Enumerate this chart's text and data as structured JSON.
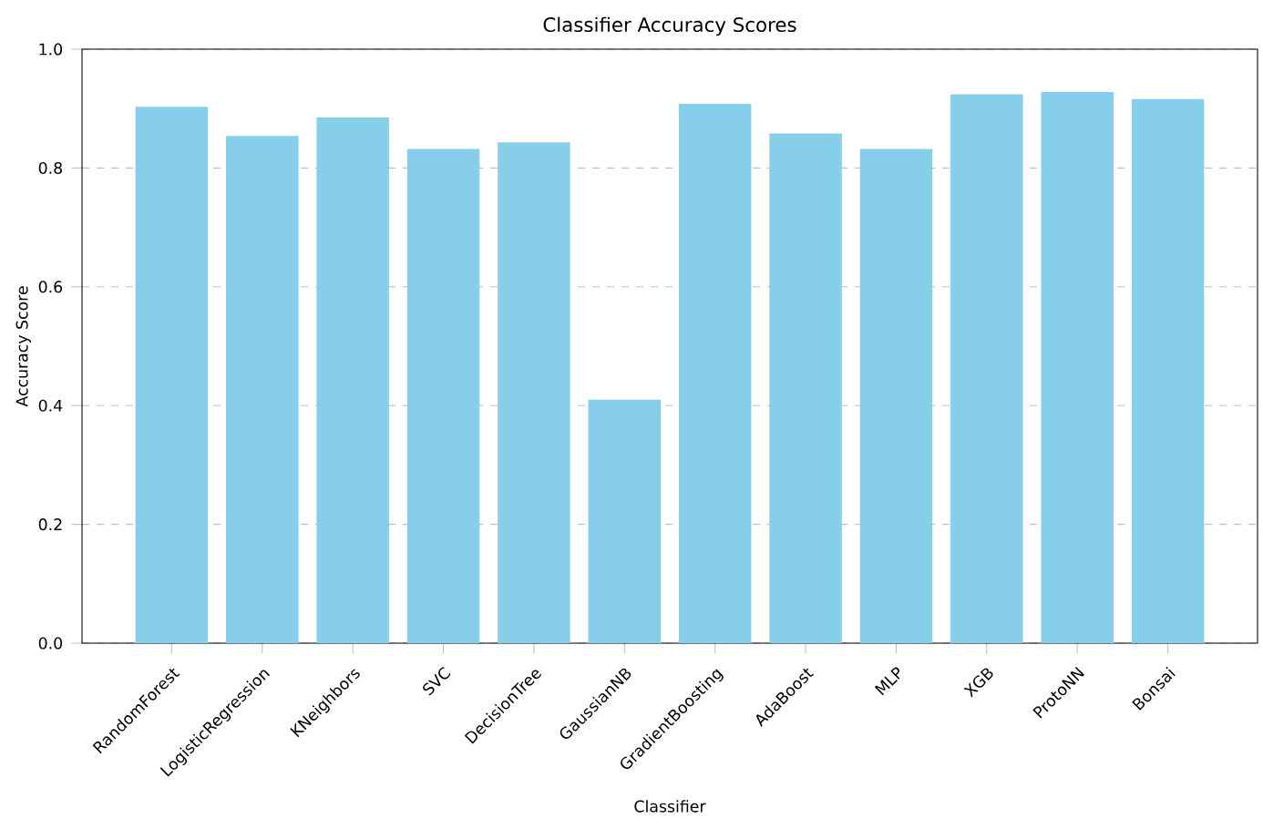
{
  "chart_data": {
    "type": "bar",
    "title": "Classifier Accuracy Scores",
    "xlabel": "Classifier",
    "ylabel": "Accuracy Score",
    "categories": [
      "RandomForest",
      "LogisticRegression",
      "KNeighbors",
      "SVC",
      "DecisionTree",
      "GaussianNB",
      "GradientBoosting",
      "AdaBoost",
      "MLP",
      "XGB",
      "ProtoNN",
      "Bonsai"
    ],
    "values": [
      0.903,
      0.854,
      0.885,
      0.832,
      0.843,
      0.41,
      0.908,
      0.858,
      0.832,
      0.924,
      0.928,
      0.916
    ],
    "color": "#87ceeb",
    "ylim": [
      0,
      1.0
    ],
    "yticks": [
      {
        "value": 0,
        "label": "0.0"
      },
      0.2,
      0.4,
      0.6,
      0.8,
      {
        "value": 1,
        "label": "1.0"
      }
    ],
    "grid": "y"
  }
}
